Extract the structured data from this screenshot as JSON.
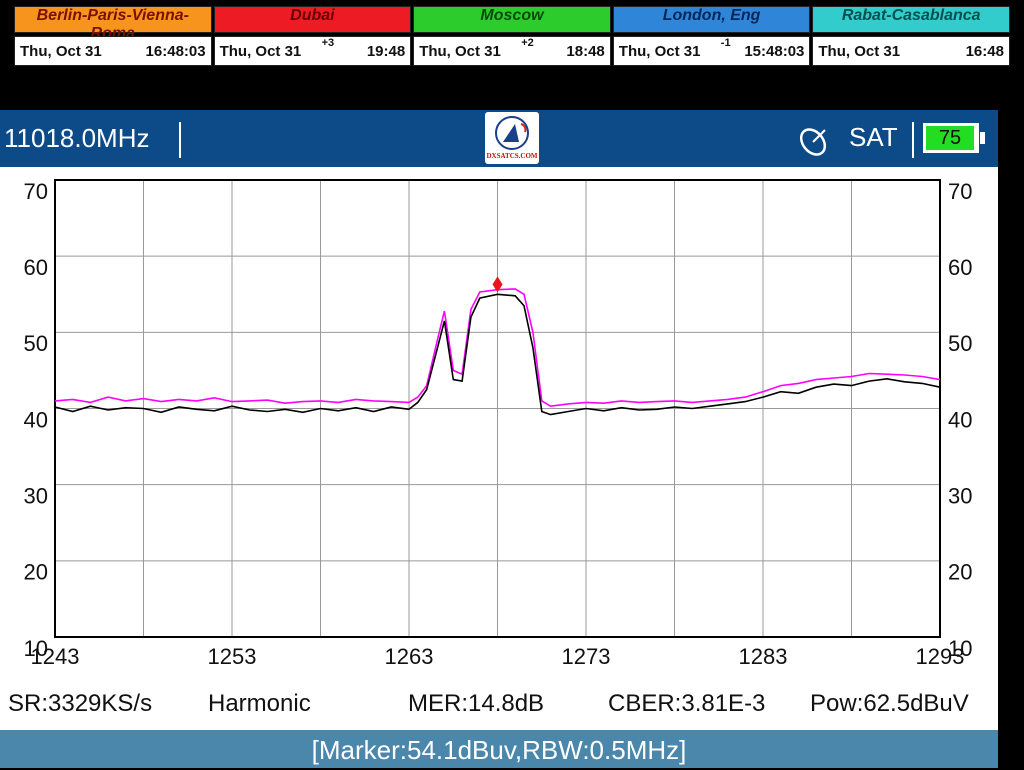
{
  "clocks": [
    {
      "city": "Berlin-Paris-Vienna-Roma",
      "color": "#f7941d",
      "text_color": "#7a1000",
      "date": "Thu, Oct 31",
      "time": "16:48:03"
    },
    {
      "city": "Dubai",
      "color": "#ed1c24",
      "text_color": "#6a0000",
      "date": "Thu, Oct 31",
      "offset": "+3",
      "time": "19:48"
    },
    {
      "city": "Moscow",
      "color": "#2ccc2c",
      "text_color": "#0a4a0a",
      "date": "Thu, Oct 31",
      "offset": "+2",
      "time": "18:48"
    },
    {
      "city": "London, Eng",
      "color": "#2f86d8",
      "text_color": "#06275a",
      "date": "Thu, Oct 31",
      "offset": "-1",
      "time": "15:48:03"
    },
    {
      "city": "Rabat-Casablanca",
      "color": "#33cccc",
      "text_color": "#06504f",
      "date": "Thu, Oct 31",
      "time": "16:48"
    }
  ],
  "header": {
    "frequency": "11018.0MHz",
    "logo": "DXSATCS.COM",
    "mode": "SAT",
    "battery": "75"
  },
  "chart_data": {
    "type": "line",
    "x": [
      1243,
      1244,
      1245,
      1246,
      1247,
      1248,
      1249,
      1250,
      1251,
      1252,
      1253,
      1254,
      1255,
      1256,
      1257,
      1258,
      1259,
      1260,
      1261,
      1262,
      1263,
      1263.5,
      1264,
      1264.5,
      1265,
      1265.5,
      1266,
      1266.5,
      1267,
      1268,
      1269,
      1269.5,
      1270,
      1270.5,
      1271,
      1272,
      1273,
      1274,
      1275,
      1276,
      1277,
      1278,
      1279,
      1280,
      1281,
      1282,
      1283,
      1284,
      1285,
      1286,
      1287,
      1288,
      1289,
      1290,
      1291,
      1292,
      1293
    ],
    "series": [
      {
        "color": "#ff00ff",
        "values": [
          41,
          41.2,
          40.8,
          41.5,
          41,
          41.3,
          40.9,
          41.2,
          41,
          41.4,
          40.9,
          41,
          41.1,
          40.7,
          40.9,
          41,
          40.8,
          41.2,
          41,
          40.9,
          40.8,
          41.5,
          43,
          48,
          52.8,
          45,
          44.5,
          53,
          55.3,
          55.6,
          55.7,
          55,
          50,
          41,
          40.3,
          40.6,
          40.8,
          40.7,
          41,
          40.8,
          40.9,
          41,
          40.8,
          41,
          41.2,
          41.5,
          42.2,
          43,
          43.3,
          43.8,
          44,
          44.2,
          44.6,
          44.5,
          44.4,
          44.2,
          43.8
        ]
      },
      {
        "color": "#000000",
        "values": [
          40.2,
          39.6,
          40.3,
          39.8,
          40.1,
          40,
          39.5,
          40.2,
          39.9,
          39.7,
          40.3,
          39.8,
          39.6,
          39.9,
          39.5,
          40,
          39.7,
          40.1,
          39.6,
          40.2,
          39.9,
          40.8,
          42.5,
          47,
          51.5,
          43.8,
          43.6,
          52,
          54.5,
          55,
          54.8,
          53.5,
          48,
          39.6,
          39.2,
          39.6,
          40,
          39.7,
          40.1,
          39.8,
          39.9,
          40.2,
          40,
          40.3,
          40.6,
          40.9,
          41.5,
          42.2,
          42,
          42.8,
          43.2,
          43,
          43.6,
          43.9,
          43.5,
          43.3,
          42.8
        ]
      }
    ],
    "marker": {
      "x": 1268,
      "y": 56.3,
      "color": "#e8141e"
    },
    "xlim": [
      1243,
      1293
    ],
    "xticks": [
      1243,
      1253,
      1263,
      1273,
      1283,
      1293
    ],
    "xgrid": [
      1243,
      1248,
      1253,
      1258,
      1263,
      1268,
      1273,
      1278,
      1283,
      1288,
      1293
    ],
    "ylim": [
      10,
      70
    ],
    "yticks": [
      10,
      20,
      30,
      40,
      50,
      60,
      70
    ],
    "grid": true
  },
  "status": [
    "SR:3329KS/s",
    "Harmonic",
    "MER:14.8dB",
    "CBER:3.81E-3",
    "Pow:62.5dBuV"
  ],
  "marker_info": "[Marker:54.1dBuv,RBW:0.5MHz]"
}
